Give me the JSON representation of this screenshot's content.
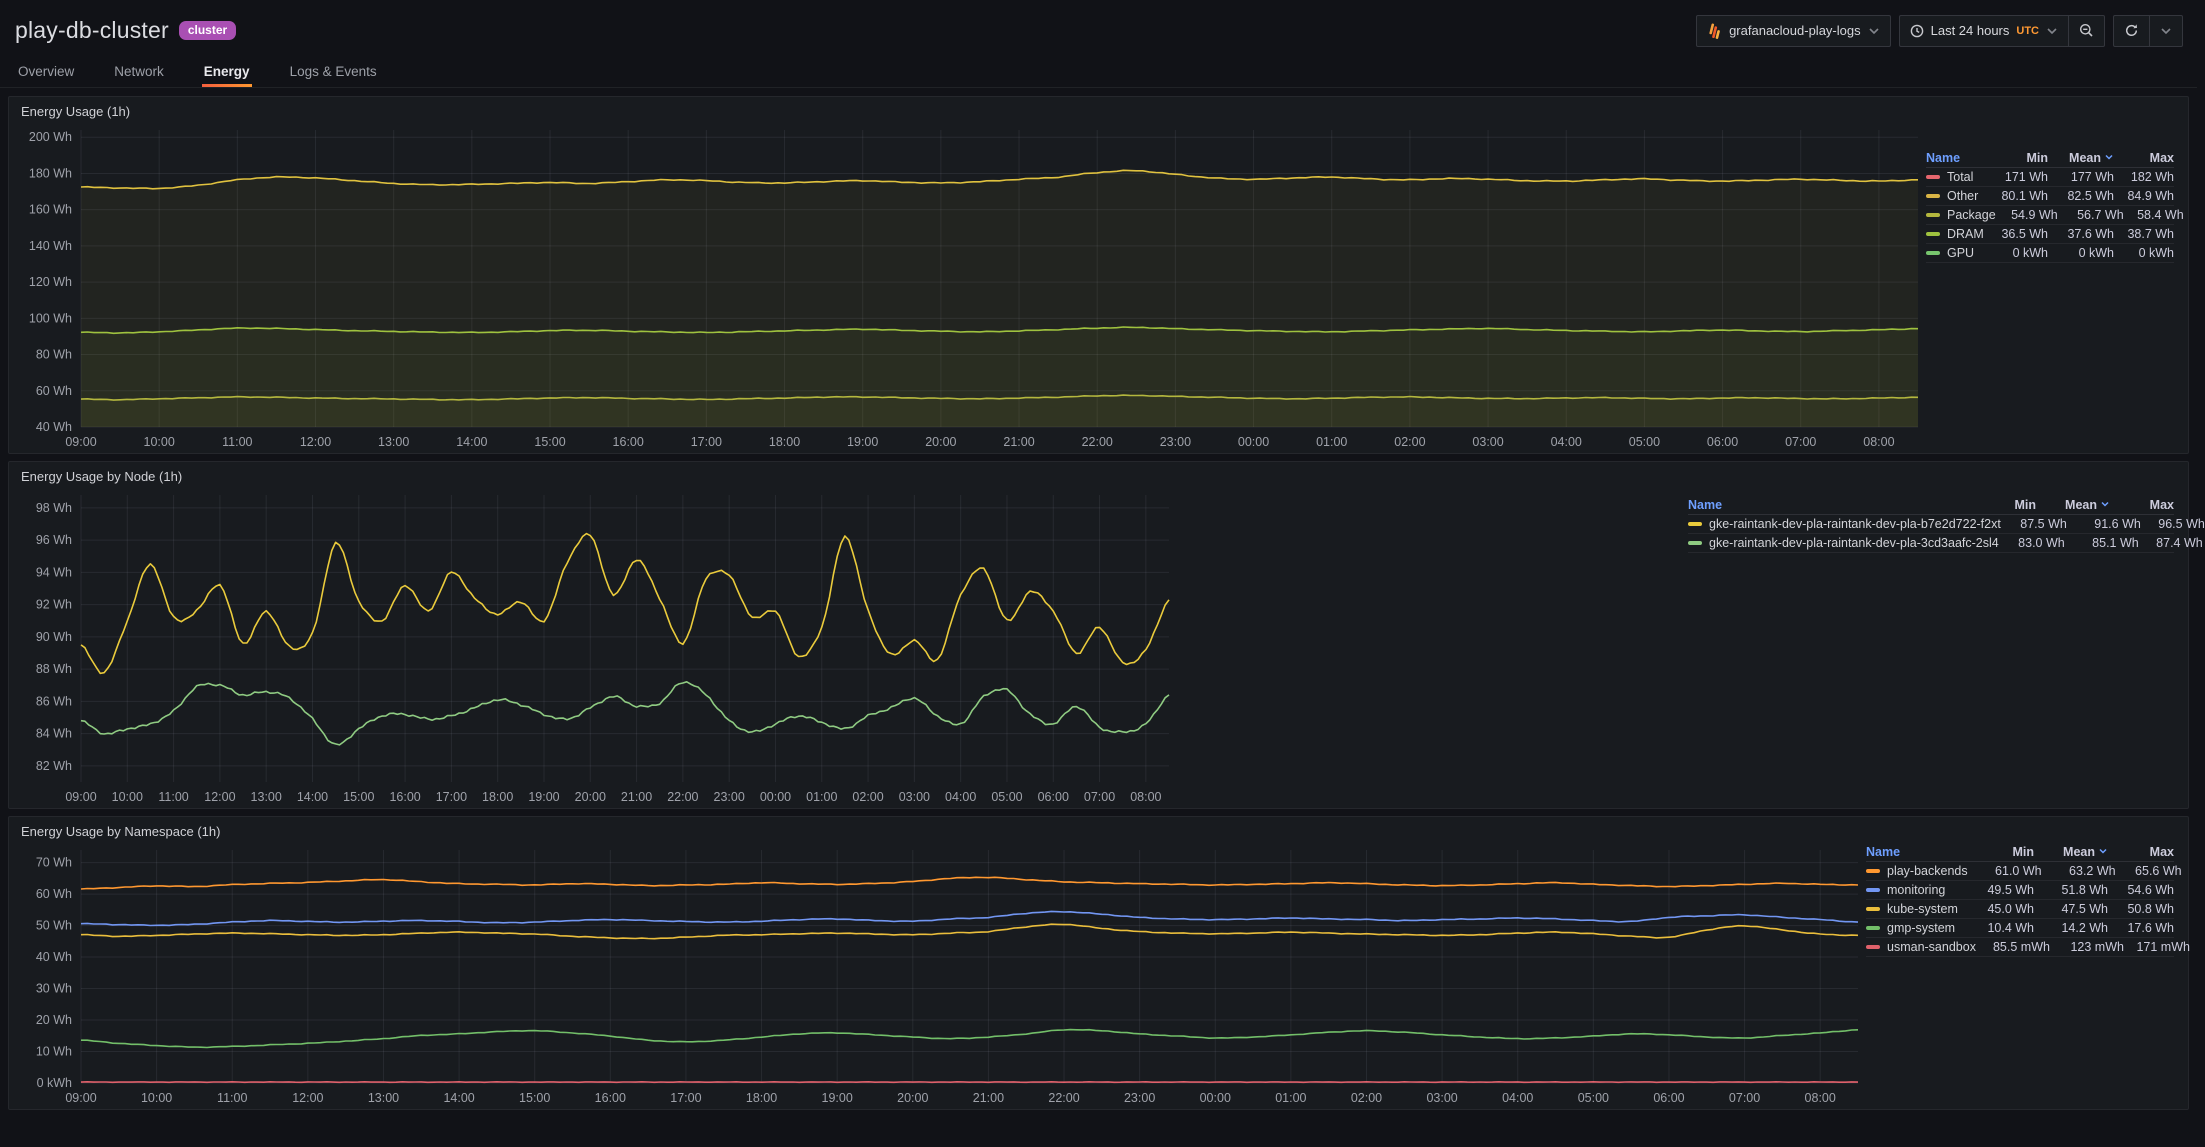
{
  "page": {
    "title": "play-db-cluster",
    "badge": "cluster"
  },
  "toolbar": {
    "datasource_label": "grafanacloud-play-logs",
    "time_range_label": "Last 24 hours",
    "timezone": "UTC"
  },
  "tabs": [
    {
      "label": "Overview",
      "active": false
    },
    {
      "label": "Network",
      "active": false
    },
    {
      "label": "Energy",
      "active": true
    },
    {
      "label": "Logs & Events",
      "active": false
    }
  ],
  "chart_data": [
    {
      "type": "line",
      "title": "Energy Usage (1h)",
      "ylim": [
        40,
        204
      ],
      "span_hours": 23.5,
      "grid": true,
      "legend_position": "right",
      "y_ticks": [
        {
          "value": 200,
          "label": "200 Wh"
        },
        {
          "value": 180,
          "label": "180 Wh"
        },
        {
          "value": 160,
          "label": "160 Wh"
        },
        {
          "value": 140,
          "label": "140 Wh"
        },
        {
          "value": 120,
          "label": "120 Wh"
        },
        {
          "value": 100,
          "label": "100 Wh"
        },
        {
          "value": 80,
          "label": "80 Wh"
        },
        {
          "value": 60,
          "label": "60 Wh"
        },
        {
          "value": 40,
          "label": "40 Wh"
        }
      ],
      "x_labels": [
        "09:00",
        "10:00",
        "11:00",
        "12:00",
        "13:00",
        "14:00",
        "15:00",
        "16:00",
        "17:00",
        "18:00",
        "19:00",
        "20:00",
        "21:00",
        "22:00",
        "23:00",
        "00:00",
        "01:00",
        "02:00",
        "03:00",
        "04:00",
        "05:00",
        "06:00",
        "07:00",
        "08:00"
      ],
      "lines": [
        {
          "name": "Other (stacked top)",
          "color": "#E0C23F",
          "fill": 0.055,
          "jitter": 0.3,
          "points": [
            172.5,
            172.0,
            171.8,
            173.5,
            176.5,
            178.0,
            177.5,
            176.0,
            174.5,
            173.8,
            174.0,
            174.5,
            175.0,
            174.5,
            175.5,
            176.5,
            176.0,
            175.0,
            174.8,
            175.5,
            176.0,
            175.2,
            174.8,
            175.5,
            176.8,
            178.0,
            180.5,
            181.5,
            179.5,
            177.5,
            176.8,
            177.5,
            178.0,
            177.0,
            176.5,
            177.2,
            176.8,
            176.0,
            175.8,
            176.5,
            177.0,
            176.2,
            175.8,
            176.3,
            176.8,
            176.2,
            175.8,
            176.5
          ]
        },
        {
          "name": "DRAM (stacked)",
          "color": "#9FC23F",
          "fill": 0.055,
          "jitter": 0.25,
          "points": [
            92.3,
            92.0,
            92.6,
            93.6,
            94.6,
            94.4,
            93.8,
            93.2,
            92.8,
            92.4,
            92.2,
            92.6,
            93.2,
            93.4,
            92.9,
            92.5,
            92.2,
            92.6,
            93.1,
            93.6,
            94.0,
            93.4,
            92.9,
            92.6,
            93.1,
            93.8,
            94.6,
            95.0,
            94.3,
            93.7,
            93.2,
            92.8,
            92.6,
            93.1,
            93.6,
            94.1,
            94.4,
            93.8,
            93.3,
            92.9,
            92.6,
            93.1,
            93.5,
            93.0,
            92.7,
            93.2,
            93.7,
            94.3
          ]
        },
        {
          "name": "Package",
          "color": "#B4B73E",
          "fill": 0.055,
          "jitter": 0.25,
          "points": [
            55.4,
            55.1,
            55.6,
            56.1,
            56.6,
            56.4,
            56.0,
            55.7,
            55.5,
            55.2,
            55.1,
            55.5,
            56.0,
            56.2,
            55.8,
            55.5,
            55.2,
            55.6,
            56.0,
            56.5,
            56.6,
            56.2,
            55.8,
            55.6,
            56.0,
            56.5,
            57.2,
            57.4,
            56.9,
            56.4,
            55.9,
            55.6,
            55.9,
            56.4,
            56.6,
            56.2,
            55.8,
            55.7,
            56.0,
            56.2,
            55.8,
            55.6,
            56.0,
            56.1,
            55.7,
            55.6,
            56.0,
            56.4
          ]
        }
      ],
      "legend_headers": [
        "Name",
        "Min",
        "Mean",
        "Max"
      ],
      "sorted_by": "Mean",
      "legend": [
        {
          "color": "#E5666E",
          "name": "Total",
          "min": "171 Wh",
          "mean": "177 Wh",
          "max": "182 Wh"
        },
        {
          "color": "#D9B445",
          "name": "Other",
          "min": "80.1 Wh",
          "mean": "82.5 Wh",
          "max": "84.9 Wh"
        },
        {
          "color": "#B4B73E",
          "name": "Package",
          "min": "54.9 Wh",
          "mean": "56.7 Wh",
          "max": "58.4 Wh"
        },
        {
          "color": "#9FC23F",
          "name": "DRAM",
          "min": "36.5 Wh",
          "mean": "37.6 Wh",
          "max": "38.7 Wh"
        },
        {
          "color": "#77C66E",
          "name": "GPU",
          "min": "0 kWh",
          "mean": "0 kWh",
          "max": "0 kWh"
        }
      ]
    },
    {
      "type": "line",
      "title": "Energy Usage by Node (1h)",
      "ylim": [
        81,
        98.8
      ],
      "span_hours": 23.5,
      "grid": true,
      "legend_position": "right",
      "y_ticks": [
        {
          "value": 98,
          "label": "98 Wh"
        },
        {
          "value": 96,
          "label": "96 Wh"
        },
        {
          "value": 94,
          "label": "94 Wh"
        },
        {
          "value": 92,
          "label": "92 Wh"
        },
        {
          "value": 90,
          "label": "90 Wh"
        },
        {
          "value": 88,
          "label": "88 Wh"
        },
        {
          "value": 86,
          "label": "86 Wh"
        },
        {
          "value": 84,
          "label": "84 Wh"
        },
        {
          "value": 82,
          "label": "82 Wh"
        }
      ],
      "x_labels": [
        "09:00",
        "10:00",
        "11:00",
        "12:00",
        "13:00",
        "14:00",
        "15:00",
        "16:00",
        "17:00",
        "18:00",
        "19:00",
        "20:00",
        "21:00",
        "22:00",
        "23:00",
        "00:00",
        "01:00",
        "02:00",
        "03:00",
        "04:00",
        "05:00",
        "06:00",
        "07:00",
        "08:00"
      ],
      "lines": [
        {
          "name": "gke-raintank-dev-pla-raintank-dev-pla-b7e2d722-f2xt",
          "color": "#EACB3C",
          "fill": 0,
          "jitter": 0.09,
          "points": [
            89.5,
            87.8,
            91.0,
            94.5,
            91.2,
            91.6,
            93.2,
            89.6,
            91.6,
            89.4,
            90.2,
            95.8,
            92.2,
            91.0,
            93.2,
            91.6,
            94.0,
            92.4,
            91.4,
            92.2,
            91.0,
            94.6,
            96.3,
            92.6,
            94.8,
            92.4,
            89.6,
            93.6,
            93.8,
            91.2,
            91.6,
            88.8,
            90.6,
            96.2,
            91.6,
            88.9,
            89.8,
            88.6,
            92.6,
            94.2,
            91.0,
            92.8,
            91.6,
            89.0,
            90.6,
            88.4,
            89.2,
            92.3
          ]
        },
        {
          "name": "gke-raintank-dev-pla-raintank-dev-pla-3cd3aafc-2sl4",
          "color": "#8FCB82",
          "fill": 0,
          "jitter": 0.09,
          "points": [
            84.8,
            84.0,
            84.3,
            84.6,
            85.4,
            86.9,
            87.0,
            86.4,
            86.6,
            86.2,
            84.9,
            83.3,
            84.3,
            85.1,
            85.2,
            84.9,
            85.1,
            85.6,
            86.1,
            85.8,
            85.2,
            84.9,
            85.6,
            86.3,
            85.7,
            85.9,
            87.2,
            86.4,
            84.8,
            84.1,
            84.6,
            85.1,
            84.7,
            84.3,
            85.1,
            85.6,
            86.2,
            85.1,
            84.6,
            86.3,
            86.7,
            85.2,
            84.6,
            85.7,
            84.4,
            84.1,
            84.6,
            86.4
          ]
        }
      ],
      "legend_headers": [
        "Name",
        "Min",
        "Mean",
        "Max"
      ],
      "sorted_by": "Mean",
      "legend": [
        {
          "color": "#EACB3C",
          "name": "gke-raintank-dev-pla-raintank-dev-pla-b7e2d722-f2xt",
          "min": "87.5 Wh",
          "mean": "91.6 Wh",
          "max": "96.5 Wh"
        },
        {
          "color": "#8FCB82",
          "name": "gke-raintank-dev-pla-raintank-dev-pla-3cd3aafc-2sl4",
          "min": "83.0 Wh",
          "mean": "85.1 Wh",
          "max": "87.4 Wh"
        }
      ]
    },
    {
      "type": "line",
      "title": "Energy Usage by Namespace (1h)",
      "ylim": [
        0,
        74
      ],
      "span_hours": 23.5,
      "grid": true,
      "legend_position": "right",
      "y_ticks": [
        {
          "value": 70,
          "label": "70 Wh"
        },
        {
          "value": 60,
          "label": "60 Wh"
        },
        {
          "value": 50,
          "label": "50 Wh"
        },
        {
          "value": 40,
          "label": "40 Wh"
        },
        {
          "value": 30,
          "label": "30 Wh"
        },
        {
          "value": 20,
          "label": "20 Wh"
        },
        {
          "value": 10,
          "label": "10 Wh"
        },
        {
          "value": 0,
          "label": "0 kWh"
        }
      ],
      "x_labels": [
        "09:00",
        "10:00",
        "11:00",
        "12:00",
        "13:00",
        "14:00",
        "15:00",
        "16:00",
        "17:00",
        "18:00",
        "19:00",
        "20:00",
        "21:00",
        "22:00",
        "23:00",
        "00:00",
        "01:00",
        "02:00",
        "03:00",
        "04:00",
        "05:00",
        "06:00",
        "07:00",
        "08:00"
      ],
      "lines": [
        {
          "name": "play-backends",
          "color": "#FF9830",
          "fill": 0,
          "jitter": 0.14,
          "points": [
            61.6,
            62.1,
            62.6,
            62.4,
            63.0,
            63.4,
            63.7,
            64.2,
            64.6,
            63.9,
            63.3,
            63.1,
            62.9,
            63.3,
            63.1,
            62.7,
            62.9,
            63.1,
            63.6,
            63.3,
            63.1,
            63.4,
            64.0,
            65.0,
            65.3,
            64.6,
            63.9,
            63.6,
            63.3,
            63.1,
            62.9,
            63.1,
            63.3,
            63.6,
            63.3,
            62.9,
            62.7,
            62.9,
            63.3,
            63.6,
            63.1,
            62.7,
            62.4,
            62.7,
            63.1,
            63.4,
            63.1,
            62.9
          ]
        },
        {
          "name": "monitoring",
          "color": "#7296F2",
          "fill": 0,
          "jitter": 0.14,
          "points": [
            50.6,
            50.3,
            50.1,
            50.4,
            51.1,
            51.6,
            51.3,
            51.1,
            51.4,
            51.6,
            51.3,
            50.9,
            51.1,
            51.6,
            51.9,
            51.6,
            51.3,
            51.1,
            51.4,
            51.9,
            52.1,
            51.6,
            51.4,
            52.1,
            52.6,
            53.9,
            54.4,
            53.6,
            52.6,
            52.1,
            51.9,
            52.1,
            52.4,
            52.1,
            51.9,
            51.6,
            51.9,
            52.1,
            52.4,
            52.1,
            51.6,
            51.3,
            52.6,
            53.1,
            53.4,
            52.6,
            51.9,
            51.1
          ]
        },
        {
          "name": "kube-system",
          "color": "#EABE3C",
          "fill": 0,
          "jitter": 0.14,
          "points": [
            47.1,
            46.6,
            46.9,
            47.3,
            47.6,
            47.4,
            47.1,
            46.9,
            47.1,
            47.6,
            47.9,
            47.6,
            47.3,
            46.6,
            46.1,
            45.9,
            46.3,
            46.9,
            47.1,
            47.4,
            47.6,
            47.3,
            47.1,
            47.6,
            48.1,
            49.6,
            50.4,
            49.1,
            48.1,
            47.6,
            47.4,
            47.6,
            47.9,
            47.6,
            47.3,
            47.1,
            46.9,
            47.1,
            47.6,
            47.9,
            47.4,
            46.6,
            46.3,
            48.6,
            49.9,
            48.6,
            47.3,
            46.9
          ]
        },
        {
          "name": "gmp-system",
          "color": "#73BF69",
          "fill": 0,
          "jitter": 0.12,
          "points": [
            13.6,
            12.6,
            11.9,
            11.4,
            11.6,
            12.1,
            12.6,
            13.3,
            14.1,
            15.1,
            15.6,
            16.3,
            16.6,
            15.9,
            14.9,
            13.6,
            13.1,
            13.6,
            14.6,
            15.6,
            15.9,
            15.3,
            14.6,
            14.1,
            14.6,
            15.6,
            16.9,
            16.6,
            15.6,
            14.9,
            14.3,
            14.6,
            15.3,
            16.1,
            16.6,
            16.1,
            15.3,
            14.6,
            14.1,
            14.3,
            14.9,
            15.6,
            15.3,
            14.6,
            14.3,
            15.1,
            15.9,
            16.9
          ]
        },
        {
          "name": "usman-sandbox",
          "color": "#E0616B",
          "fill": 0,
          "jitter": 0.09,
          "points": [
            0.3,
            0.3,
            0.3,
            0.3,
            0.3,
            0.3,
            0.3,
            0.3,
            0.3,
            0.3,
            0.3,
            0.3,
            0.3,
            0.3,
            0.3,
            0.3,
            0.3,
            0.3,
            0.3,
            0.3,
            0.3,
            0.3,
            0.3,
            0.3,
            0.3,
            0.3,
            0.3,
            0.3,
            0.3,
            0.3,
            0.3,
            0.3,
            0.3,
            0.3,
            0.3,
            0.3,
            0.3,
            0.3,
            0.3,
            0.3,
            0.3,
            0.3,
            0.3,
            0.3,
            0.3,
            0.3,
            0.3,
            0.3
          ]
        }
      ],
      "legend_headers": [
        "Name",
        "Min",
        "Mean",
        "Max"
      ],
      "sorted_by": "Mean",
      "legend": [
        {
          "color": "#FF9830",
          "name": "play-backends",
          "min": "61.0 Wh",
          "mean": "63.2 Wh",
          "max": "65.6 Wh"
        },
        {
          "color": "#7296F2",
          "name": "monitoring",
          "min": "49.5 Wh",
          "mean": "51.8 Wh",
          "max": "54.6 Wh"
        },
        {
          "color": "#EABE3C",
          "name": "kube-system",
          "min": "45.0 Wh",
          "mean": "47.5 Wh",
          "max": "50.8 Wh"
        },
        {
          "color": "#73BF69",
          "name": "gmp-system",
          "min": "10.4 Wh",
          "mean": "14.2 Wh",
          "max": "17.6 Wh"
        },
        {
          "color": "#E0616B",
          "name": "usman-sandbox",
          "min": "85.5 mWh",
          "mean": "123 mWh",
          "max": "171 mWh"
        }
      ]
    }
  ]
}
